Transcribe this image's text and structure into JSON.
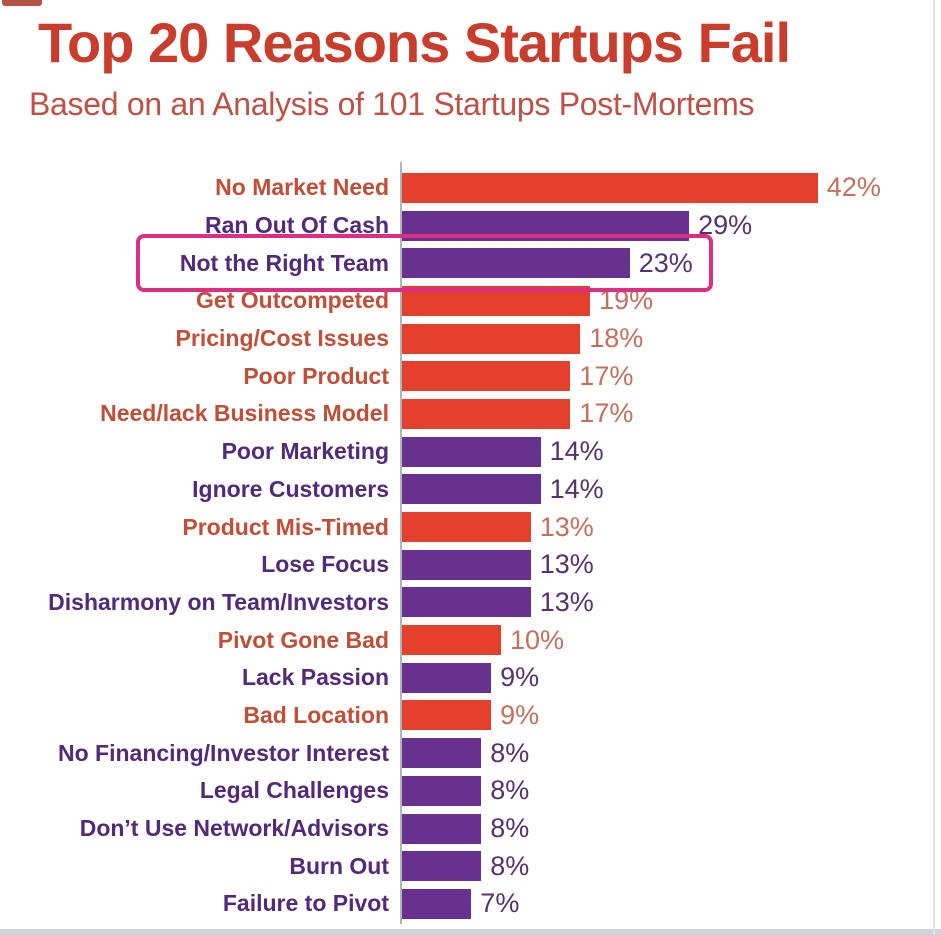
{
  "page": {
    "title": "Top 20 Reasons Startups Fail",
    "subtitle": "Based on an Analysis of 101 Startups Post-Mortems"
  },
  "colors": {
    "title_text": "#c83d2c",
    "subtitle_text": "#c05045",
    "orange_bar": "#e5402e",
    "purple_bar": "#68308f",
    "orange_category_text": "#c14e37",
    "purple_category_text": "#53297a",
    "orange_value_text": "#c3705e",
    "purple_value_text": "#573170",
    "axis_line": "#b0b4bb",
    "highlight_box": "#de2e82"
  },
  "chart_data": {
    "type": "bar",
    "orientation": "horizontal",
    "title": "Top 20 Reasons Startups Fail",
    "subtitle": "Based on an Analysis of 101 Startups Post-Mortems",
    "unit": "%",
    "xlim": [
      0,
      44
    ],
    "grid": false,
    "legend": false,
    "axis_note": "single vertical baseline at 0, no tick labels",
    "categories": [
      "No Market Need",
      "Ran Out Of Cash",
      "Not the Right Team",
      "Get Outcompeted",
      "Pricing/Cost Issues",
      "Poor Product",
      "Need/lack Business Model",
      "Poor Marketing",
      "Ignore Customers",
      "Product Mis-Timed",
      "Lose Focus",
      "Disharmony on Team/Investors",
      "Pivot Gone Bad",
      "Lack Passion",
      "Bad Location",
      "No Financing/Investor Interest",
      "Legal Challenges",
      "Don’t Use Network/Advisors",
      "Burn Out",
      "Failure to Pivot"
    ],
    "values": [
      42,
      29,
      23,
      19,
      18,
      17,
      17,
      14,
      14,
      13,
      13,
      13,
      10,
      9,
      9,
      8,
      8,
      8,
      8,
      7
    ],
    "value_labels": [
      "42%",
      "29%",
      "23%",
      "19%",
      "18%",
      "17%",
      "17%",
      "14%",
      "14%",
      "13%",
      "13%",
      "13%",
      "10%",
      "9%",
      "9%",
      "8%",
      "8%",
      "8%",
      "8%",
      "7%"
    ],
    "bar_palette": [
      "orange",
      "purple",
      "purple",
      "orange",
      "orange",
      "orange",
      "orange",
      "purple",
      "purple",
      "orange",
      "purple",
      "purple",
      "orange",
      "purple",
      "orange",
      "purple",
      "purple",
      "purple",
      "purple",
      "purple"
    ],
    "highlighted_category": "Not the Right Team",
    "highlighted_index": 2
  }
}
